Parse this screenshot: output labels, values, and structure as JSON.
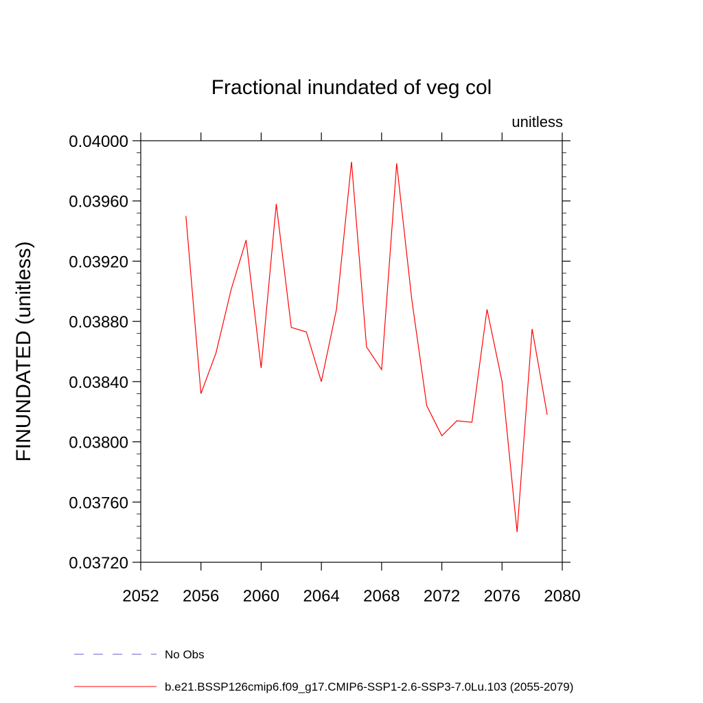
{
  "chart_data": {
    "type": "line",
    "title": "Fractional inundated of veg col",
    "units_label": "unitless",
    "xlabel": "",
    "ylabel": "FINUNDATED  (unitless)",
    "xlim": [
      2052,
      2080
    ],
    "ylim": [
      0.0372,
      0.04
    ],
    "x_ticks": [
      2052,
      2056,
      2060,
      2064,
      2068,
      2072,
      2076,
      2080
    ],
    "y_ticks": [
      0.0372,
      0.0376,
      0.038,
      0.0384,
      0.0388,
      0.0392,
      0.0396,
      0.04
    ],
    "x_tick_labels": [
      "2052",
      "2056",
      "2060",
      "2064",
      "2068",
      "2072",
      "2076",
      "2080"
    ],
    "y_tick_labels": [
      "0.03720",
      "0.03760",
      "0.03800",
      "0.03840",
      "0.03880",
      "0.03920",
      "0.03960",
      "0.04000"
    ],
    "grid": false,
    "legend_position": "bottom",
    "series": [
      {
        "name": "b.e21.BSSP126cmip6.f09_g17.CMIP6-SSP1-2.6-SSP3-7.0Lu.103 (2055-2079)",
        "color": "#ff0000",
        "style": "solid",
        "x": [
          2055,
          2056,
          2057,
          2058,
          2059,
          2060,
          2061,
          2062,
          2063,
          2064,
          2065,
          2066,
          2067,
          2068,
          2069,
          2070,
          2071,
          2072,
          2073,
          2074,
          2075,
          2076,
          2077,
          2078,
          2079
        ],
        "y": [
          0.0395,
          0.03832,
          0.03859,
          0.03901,
          0.03934,
          0.03849,
          0.03958,
          0.03876,
          0.03873,
          0.0384,
          0.03888,
          0.03986,
          0.03863,
          0.03848,
          0.03985,
          0.03895,
          0.03824,
          0.03804,
          0.03814,
          0.03813,
          0.03888,
          0.0384,
          0.0374,
          0.03875,
          0.03818
        ]
      },
      {
        "name": "No Obs",
        "color": "#6a5acd",
        "style": "dashed",
        "x": [],
        "y": []
      }
    ]
  }
}
